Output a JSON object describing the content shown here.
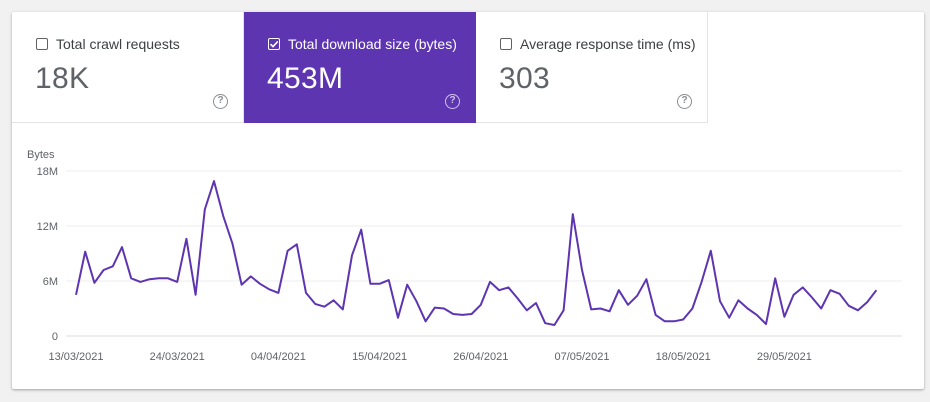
{
  "metrics": [
    {
      "label": "Total crawl requests",
      "value": "18K",
      "checked": false
    },
    {
      "label": "Total download size (bytes)",
      "value": "453M",
      "checked": true
    },
    {
      "label": "Average response time (ms)",
      "value": "303",
      "checked": false
    }
  ],
  "help_glyph": "?",
  "colors": {
    "accent": "#5e35b1",
    "line": "#5e35b1"
  },
  "chart_data": {
    "type": "line",
    "ylabel": "Bytes",
    "ylim": [
      0,
      18
    ],
    "yticks": [
      0,
      6,
      12,
      18
    ],
    "ytick_labels": [
      "0",
      "6M",
      "12M",
      "18M"
    ],
    "xtick_labels": [
      "13/03/2021",
      "24/03/2021",
      "04/04/2021",
      "15/04/2021",
      "26/04/2021",
      "07/05/2021",
      "18/05/2021",
      "29/05/2021"
    ],
    "xtick_index": [
      0,
      11,
      22,
      33,
      44,
      55,
      66,
      77
    ],
    "series": [
      {
        "values": [
          4.5,
          9.2,
          5.8,
          7.2,
          7.6,
          9.7,
          6.3,
          5.9,
          6.2,
          6.3,
          6.3,
          5.9,
          10.6,
          4.5,
          13.8,
          16.9,
          13.1,
          10.1,
          5.6,
          6.5,
          5.7,
          5.1,
          4.7,
          9.3,
          10.0,
          4.7,
          3.5,
          3.2,
          3.9,
          2.9,
          8.8,
          11.6,
          5.7,
          5.7,
          6.1,
          2.0,
          5.6,
          3.8,
          1.6,
          3.1,
          3.0,
          2.4,
          2.3,
          2.4,
          3.4,
          5.9,
          5.0,
          5.3,
          4.1,
          2.8,
          3.6,
          1.4,
          1.2,
          2.8,
          13.3,
          7.2,
          2.9,
          3.0,
          2.7,
          5.0,
          3.4,
          4.4,
          6.2,
          2.3,
          1.6,
          1.6,
          1.8,
          3.0,
          5.9,
          9.3,
          3.8,
          2.0,
          3.9,
          3.0,
          2.3,
          1.3,
          6.3,
          2.1,
          4.5,
          5.3,
          4.2,
          3.0,
          5.0,
          4.6,
          3.3,
          2.8,
          3.7,
          5.0
        ]
      }
    ]
  }
}
